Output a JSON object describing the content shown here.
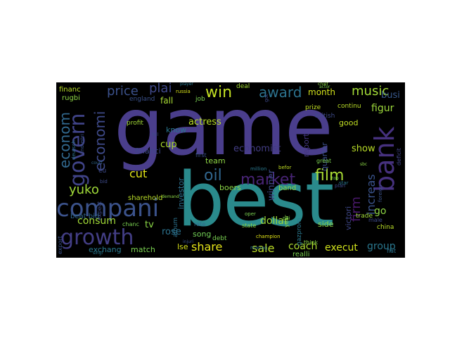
{
  "wordcloud": {
    "words": [
      {
        "text": "game",
        "color": "#4a3e8c"
      },
      {
        "text": "best",
        "color": "#2a8a8c"
      },
      {
        "text": "compani",
        "color": "#3b528b"
      },
      {
        "text": "growth",
        "color": "#433e85"
      },
      {
        "text": "bank",
        "color": "#46317e"
      },
      {
        "text": "govern",
        "color": "#404388"
      },
      {
        "text": "econom",
        "color": "#31688e"
      },
      {
        "text": "economi",
        "color": "#3e4a89"
      },
      {
        "text": "market",
        "color": "#482475"
      },
      {
        "text": "film",
        "color": "#a8db34"
      },
      {
        "text": "oil",
        "color": "#31668e"
      },
      {
        "text": "win",
        "color": "#c2df23"
      },
      {
        "text": "award",
        "color": "#2c728e"
      },
      {
        "text": "music",
        "color": "#a2da37"
      },
      {
        "text": "price",
        "color": "#3b518b"
      },
      {
        "text": "plai",
        "color": "#3f4889"
      },
      {
        "text": "yuko",
        "color": "#a0da39"
      },
      {
        "text": "firm",
        "color": "#48186a"
      },
      {
        "text": "increas",
        "color": "#3a538b"
      },
      {
        "text": "share",
        "color": "#e5e419"
      },
      {
        "text": "sale",
        "color": "#bddf26"
      },
      {
        "text": "cut",
        "color": "#e2e418"
      },
      {
        "text": "consum",
        "color": "#a2da37"
      },
      {
        "text": "dollar",
        "color": "#9bd93c"
      },
      {
        "text": "coach",
        "color": "#addc30"
      },
      {
        "text": "execut",
        "color": "#d0e11c"
      },
      {
        "text": "group",
        "color": "#2a778e"
      },
      {
        "text": "go",
        "color": "#8ed645"
      },
      {
        "text": "figur",
        "color": "#9dd93b"
      },
      {
        "text": "busi",
        "color": "#38588c"
      },
      {
        "text": "show",
        "color": "#bade28"
      },
      {
        "text": "rose",
        "color": "#2c728e"
      },
      {
        "text": "cup",
        "color": "#addc30"
      },
      {
        "text": "actress",
        "color": "#bade28"
      },
      {
        "text": "economist",
        "color": "#433d84"
      },
      {
        "text": "winner",
        "color": "#3e4a89"
      },
      {
        "text": "month",
        "color": "#d2e21b"
      },
      {
        "text": "investor",
        "color": "#2e6f8e"
      },
      {
        "text": "tv",
        "color": "#8bd646"
      },
      {
        "text": "fall",
        "color": "#a8db34"
      },
      {
        "text": "boers",
        "color": "#8bd646"
      },
      {
        "text": "song",
        "color": "#73d056"
      },
      {
        "text": "match",
        "color": "#7ad151"
      },
      {
        "text": "exchang",
        "color": "#2a788e"
      },
      {
        "text": "lse",
        "color": "#d8e219"
      },
      {
        "text": "financi",
        "color": "#3e4989"
      },
      {
        "text": "know",
        "color": "#2a778e"
      },
      {
        "text": "team",
        "color": "#8ed645"
      },
      {
        "text": "quarter",
        "color": "#3c4f8a"
      },
      {
        "text": "good",
        "color": "#c2df23"
      },
      {
        "text": "report",
        "color": "#453781"
      },
      {
        "text": "victori",
        "color": "#3f4889"
      },
      {
        "text": "side",
        "color": "#8bd646"
      },
      {
        "text": "band",
        "color": "#8bd646"
      },
      {
        "text": "sharehold",
        "color": "#bade28"
      },
      {
        "text": "debt",
        "color": "#7ad151"
      },
      {
        "text": "realli",
        "color": "#7ad151"
      },
      {
        "text": "beat bid",
        "color": "#31688e"
      },
      {
        "text": "financ",
        "color": "#bade28"
      },
      {
        "text": "rugbi",
        "color": "#8ed645"
      },
      {
        "text": "deal",
        "color": "#a2da37"
      },
      {
        "text": "job",
        "color": "#7ad151"
      },
      {
        "text": "england",
        "color": "#3b528b"
      },
      {
        "text": "profit",
        "color": "#a2da37"
      },
      {
        "text": "expect",
        "color": "#3e4a89"
      },
      {
        "text": "export",
        "color": "#3b528b"
      },
      {
        "text": "album",
        "color": "#2c728e"
      },
      {
        "text": "gazprom",
        "color": "#2a788e"
      },
      {
        "text": "british",
        "color": "#3e4a89"
      },
      {
        "text": "chanc",
        "color": "#7ad151"
      },
      {
        "text": "think",
        "color": "#8bd646"
      },
      {
        "text": "china",
        "color": "#bade28"
      },
      {
        "text": "trade",
        "color": "#a0da39"
      },
      {
        "text": "deficit",
        "color": "#414487"
      },
      {
        "text": "continu",
        "color": "#bade28"
      },
      {
        "text": "prize",
        "color": "#c2df23"
      },
      {
        "text": "first",
        "color": "#3b528b"
      },
      {
        "text": "rate",
        "color": "#31688e"
      },
      {
        "text": "state",
        "color": "#8bd646"
      },
      {
        "text": "year",
        "color": "#8bd646"
      },
      {
        "text": "champion",
        "color": "#e2e418"
      },
      {
        "text": "fiat",
        "color": "#2c728e"
      },
      {
        "text": "male",
        "color": "#3e4a89"
      },
      {
        "text": "star",
        "color": "#2a788e"
      },
      {
        "text": "great",
        "color": "#7ad151"
      },
      {
        "text": "oper",
        "color": "#7ad151"
      },
      {
        "text": "manag",
        "color": "#2c728e"
      },
      {
        "text": "got",
        "color": "#3e4a89"
      },
      {
        "text": "russia",
        "color": "#d8e219"
      },
      {
        "text": "actor",
        "color": "#7ad151"
      },
      {
        "text": "chief",
        "color": "#8bd646"
      },
      {
        "text": "player",
        "color": "#2a788e"
      },
      {
        "text": "million",
        "color": "#2a788e"
      },
      {
        "text": "befor",
        "color": "#c2df23"
      },
      {
        "text": "eu",
        "color": "#3e4a89"
      },
      {
        "text": "pai",
        "color": "#7ad151"
      },
      {
        "text": "top",
        "color": "#7ad151"
      },
      {
        "text": "sbc",
        "color": "#8bd646"
      },
      {
        "text": "plan",
        "color": "#3e4a89"
      },
      {
        "text": "injuri",
        "color": "#3b528b"
      },
      {
        "text": "bid",
        "color": "#3e4a89"
      },
      {
        "text": "demand",
        "color": "#8bd646"
      },
      {
        "text": "deutsch",
        "color": "#2c728e"
      },
      {
        "text": "industri",
        "color": "#3b528b"
      },
      {
        "text": "foreign",
        "color": "#3b528b"
      },
      {
        "text": "fell",
        "color": "#3e4a89"
      },
      {
        "text": "court",
        "color": "#31688e"
      },
      {
        "text": "singl",
        "color": "#2a788e"
      }
    ]
  }
}
